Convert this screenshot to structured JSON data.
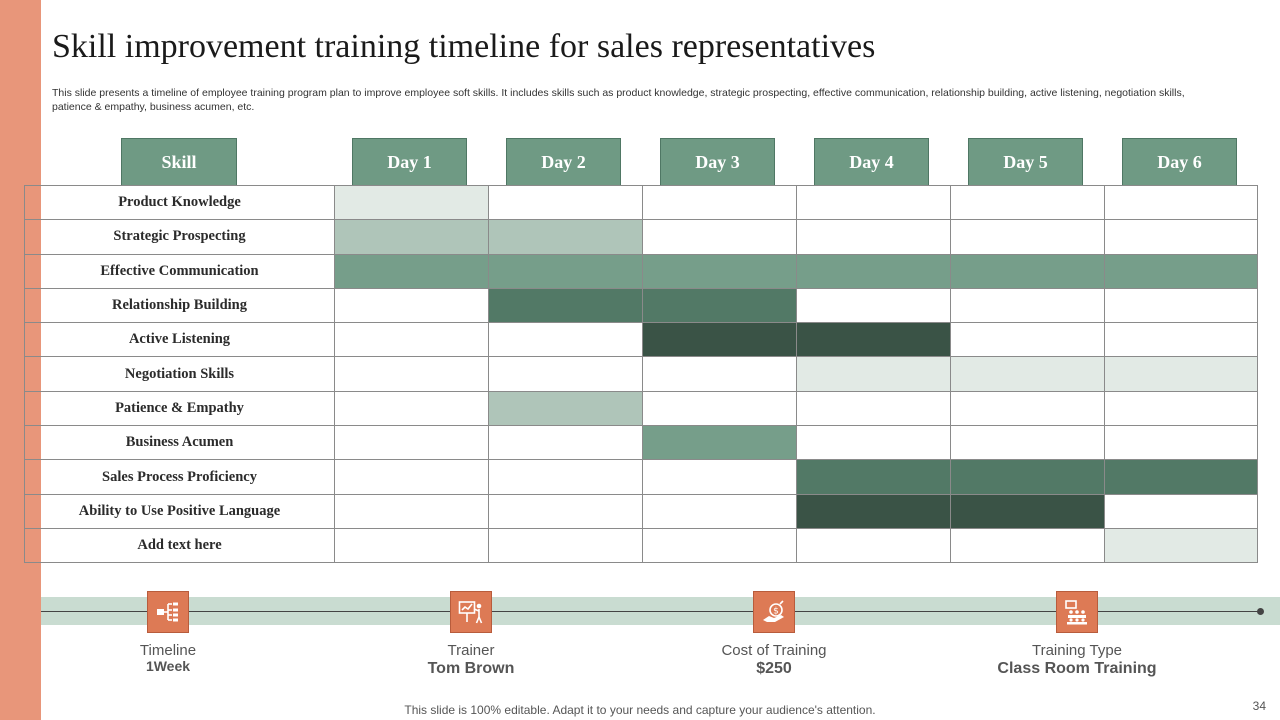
{
  "title": "Skill improvement training timeline for sales representatives",
  "subtitle": "This slide presents a timeline of  employee training program plan to improve employee soft skills. It includes skills such as product knowledge, strategic prospecting, effective communication, relationship building, active listening, negotiation skills, patience & empathy, business acumen, etc.",
  "headers": [
    "Skill",
    "Day 1",
    "Day 2",
    "Day 3",
    "Day 4",
    "Day 5",
    "Day 6"
  ],
  "colors": {
    "accent": "#E8967A",
    "icon_bg": "#DD7A55",
    "header_bg": "#6F9A84",
    "band": "#C9DCD1",
    "shade": [
      "#FFFFFF",
      "#E2EAE5",
      "#AFC5B9",
      "#769E8A",
      "#527966",
      "#3A5346"
    ]
  },
  "rows": [
    {
      "skill": "Product  Knowledge",
      "days": [
        1,
        0,
        0,
        0,
        0,
        0
      ]
    },
    {
      "skill": "Strategic Prospecting",
      "days": [
        2,
        2,
        0,
        0,
        0,
        0
      ]
    },
    {
      "skill": "Effective Communication",
      "days": [
        3,
        3,
        3,
        3,
        3,
        3
      ]
    },
    {
      "skill": "Relationship  Building",
      "days": [
        0,
        4,
        4,
        0,
        0,
        0
      ]
    },
    {
      "skill": "Active Listening",
      "days": [
        0,
        0,
        5,
        5,
        0,
        0
      ]
    },
    {
      "skill": "Negotiation Skills",
      "days": [
        0,
        0,
        0,
        1,
        1,
        1
      ]
    },
    {
      "skill": "Patience & Empathy",
      "days": [
        0,
        2,
        0,
        0,
        0,
        0
      ]
    },
    {
      "skill": "Business Acumen",
      "days": [
        0,
        0,
        3,
        0,
        0,
        0
      ]
    },
    {
      "skill": "Sales Process Proficiency",
      "days": [
        0,
        0,
        0,
        4,
        4,
        4
      ]
    },
    {
      "skill": "Ability  to Use Positive Language",
      "days": [
        0,
        0,
        0,
        5,
        5,
        0
      ]
    },
    {
      "skill": "Add text here",
      "days": [
        0,
        0,
        0,
        0,
        0,
        1
      ]
    }
  ],
  "info": [
    {
      "label": "Timeline",
      "value": "1Week",
      "icon": "timeline-icon"
    },
    {
      "label": "Trainer",
      "value": "Tom Brown",
      "icon": "trainer-presentation-icon"
    },
    {
      "label": "Cost of Training",
      "value": "$250",
      "icon": "money-cost-icon"
    },
    {
      "label": "Training Type",
      "value": "Class Room Training",
      "icon": "classroom-icon"
    }
  ],
  "footer": "This slide is 100% editable. Adapt it to your needs and capture your audience's attention.",
  "page_number": "34"
}
